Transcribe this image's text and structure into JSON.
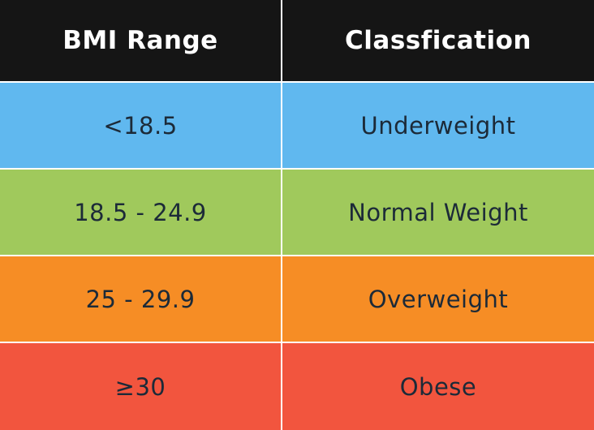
{
  "header": {
    "range": "BMI Range",
    "classification": "Classfication"
  },
  "rows": [
    {
      "range": "<18.5",
      "classification": "Underweight",
      "color": "#60b8ef"
    },
    {
      "range": "18.5 - 24.9",
      "classification": "Normal Weight",
      "color": "#a0c95c"
    },
    {
      "range": "25 - 29.9",
      "classification": "Overweight",
      "color": "#f68d25"
    },
    {
      "range": "≥30",
      "classification": "Obese",
      "color": "#f2553e"
    }
  ]
}
